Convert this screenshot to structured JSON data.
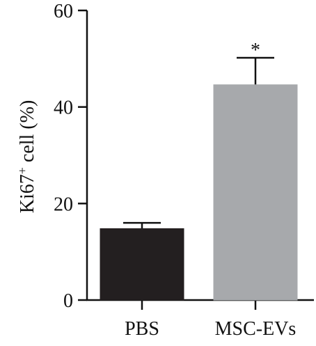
{
  "chart_data": {
    "type": "bar",
    "categories": [
      "PBS",
      "MSC-EVs"
    ],
    "values": [
      14.8,
      44.6
    ],
    "errors": [
      1.2,
      5.6
    ],
    "ylabel_main": "Ki67",
    "ylabel_sup": "+",
    "ylabel_rest": " cell (%)",
    "ylim": [
      0,
      60
    ],
    "yticks": [
      "0",
      "20",
      "40",
      "60"
    ],
    "ytick_values": [
      0,
      20,
      40,
      60
    ],
    "annotations": [
      "",
      "*"
    ],
    "colors": [
      "#231f20",
      "#a7a9ac"
    ],
    "grid": false,
    "legend": "none"
  }
}
